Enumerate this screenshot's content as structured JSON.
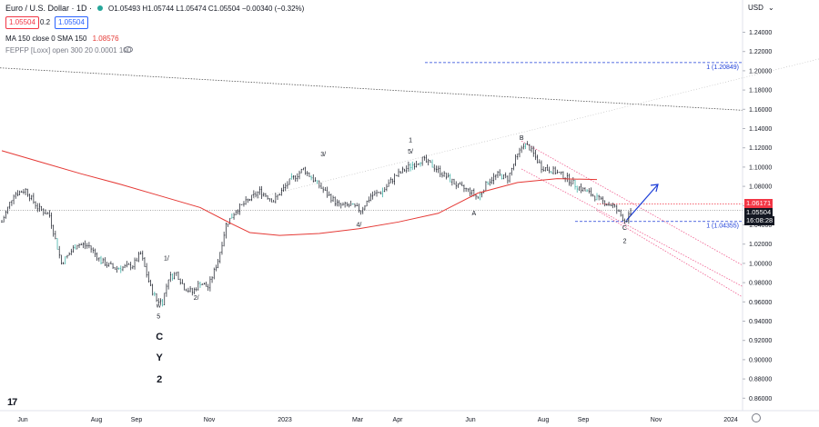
{
  "header": {
    "title": "Euro / U.S. Dollar · 1D ·",
    "ohlc": "O1.05493 H1.05744 L1.05474 C1.05504 −0.00340 (−0.32%)",
    "bid": "1.05504",
    "spread": "0.2",
    "ask": "1.05504"
  },
  "indicators": {
    "ma_label": "MA 150 close 0 SMA 150",
    "ma_value": "1.08576",
    "fepp_label": "FEPFP [Loxx] open 300 20 0.0001 100"
  },
  "currency": "USD",
  "colors": {
    "ma_line": "#e53935",
    "channel": "#f06292",
    "target_line": "#1e3fd8",
    "price_line": "#000000"
  },
  "chart_data": {
    "type": "ohlc",
    "x_ticks": [
      "Jun",
      "Aug",
      "Sep",
      "Nov",
      "2023",
      "Mar",
      "Apr",
      "Jun",
      "Aug",
      "Sep",
      "Nov",
      "2024"
    ],
    "y_ticks": [
      "1.24000",
      "1.22000",
      "1.20000",
      "1.18000",
      "1.16000",
      "1.14000",
      "1.12000",
      "1.10000",
      "1.08000",
      "1.06000",
      "1.04000",
      "1.02000",
      "1.00000",
      "0.98000",
      "0.96000",
      "0.94000",
      "0.92000",
      "0.90000",
      "0.88000",
      "0.86000"
    ],
    "ylim": [
      0.85,
      1.25
    ],
    "anchors": [
      {
        "i": 0,
        "p": 1.043
      },
      {
        "i": 6,
        "p": 1.072
      },
      {
        "i": 12,
        "p": 1.076
      },
      {
        "i": 18,
        "p": 1.058
      },
      {
        "i": 24,
        "p": 1.05
      },
      {
        "i": 30,
        "p": 1.0
      },
      {
        "i": 38,
        "p": 1.02
      },
      {
        "i": 44,
        "p": 1.018
      },
      {
        "i": 50,
        "p": 1.002
      },
      {
        "i": 57,
        "p": 0.995
      },
      {
        "i": 62,
        "p": 0.996
      },
      {
        "i": 66,
        "p": 0.998
      },
      {
        "i": 70,
        "p": 1.01
      },
      {
        "i": 75,
        "p": 0.975
      },
      {
        "i": 78,
        "p": 0.962
      },
      {
        "i": 81,
        "p": 0.96
      },
      {
        "i": 84,
        "p": 0.985
      },
      {
        "i": 88,
        "p": 0.99
      },
      {
        "i": 92,
        "p": 0.975
      },
      {
        "i": 96,
        "p": 0.97
      },
      {
        "i": 100,
        "p": 0.98
      },
      {
        "i": 104,
        "p": 0.975
      },
      {
        "i": 109,
        "p": 1.003
      },
      {
        "i": 113,
        "p": 1.04
      },
      {
        "i": 118,
        "p": 1.055
      },
      {
        "i": 124,
        "p": 1.065
      },
      {
        "i": 130,
        "p": 1.075
      },
      {
        "i": 137,
        "p": 1.065
      },
      {
        "i": 145,
        "p": 1.085
      },
      {
        "i": 152,
        "p": 1.098
      },
      {
        "i": 158,
        "p": 1.085
      },
      {
        "i": 164,
        "p": 1.072
      },
      {
        "i": 170,
        "p": 1.06
      },
      {
        "i": 176,
        "p": 1.06
      },
      {
        "i": 181,
        "p": 1.055
      },
      {
        "i": 186,
        "p": 1.07
      },
      {
        "i": 192,
        "p": 1.075
      },
      {
        "i": 198,
        "p": 1.09
      },
      {
        "i": 205,
        "p": 1.1
      },
      {
        "i": 212,
        "p": 1.108
      },
      {
        "i": 218,
        "p": 1.1
      },
      {
        "i": 224,
        "p": 1.09
      },
      {
        "i": 230,
        "p": 1.08
      },
      {
        "i": 236,
        "p": 1.075
      },
      {
        "i": 240,
        "p": 1.068
      },
      {
        "i": 245,
        "p": 1.085
      },
      {
        "i": 250,
        "p": 1.092
      },
      {
        "i": 255,
        "p": 1.088
      },
      {
        "i": 259,
        "p": 1.108
      },
      {
        "i": 263,
        "p": 1.124
      },
      {
        "i": 266,
        "p": 1.12
      },
      {
        "i": 272,
        "p": 1.1
      },
      {
        "i": 278,
        "p": 1.096
      },
      {
        "i": 284,
        "p": 1.09
      },
      {
        "i": 290,
        "p": 1.08
      },
      {
        "i": 296,
        "p": 1.073
      },
      {
        "i": 302,
        "p": 1.065
      },
      {
        "i": 308,
        "p": 1.06
      },
      {
        "i": 312,
        "p": 1.05
      },
      {
        "i": 314,
        "p": 1.044
      },
      {
        "i": 316,
        "p": 1.049
      },
      {
        "i": 318,
        "p": 1.055
      }
    ],
    "moving_average": {
      "name": "MA 150",
      "last": 1.08576,
      "points": [
        {
          "i": 0,
          "p": 1.117
        },
        {
          "i": 20,
          "p": 1.105
        },
        {
          "i": 40,
          "p": 1.093
        },
        {
          "i": 60,
          "p": 1.082
        },
        {
          "i": 80,
          "p": 1.07
        },
        {
          "i": 100,
          "p": 1.058
        },
        {
          "i": 115,
          "p": 1.042
        },
        {
          "i": 125,
          "p": 1.032
        },
        {
          "i": 140,
          "p": 1.029
        },
        {
          "i": 160,
          "p": 1.031
        },
        {
          "i": 180,
          "p": 1.036
        },
        {
          "i": 200,
          "p": 1.043
        },
        {
          "i": 220,
          "p": 1.052
        },
        {
          "i": 240,
          "p": 1.073
        },
        {
          "i": 260,
          "p": 1.084
        },
        {
          "i": 280,
          "p": 1.088
        },
        {
          "i": 300,
          "p": 1.087
        }
      ]
    },
    "price_levels": [
      {
        "label": "1 (1.20849)",
        "value": 1.20849,
        "style": "dashed-blue"
      },
      {
        "label": "1 (1.04355)",
        "value": 1.04355,
        "style": "dashed-blue"
      },
      {
        "value": 1.06171,
        "style": "dotted-red"
      },
      {
        "value": 1.05504,
        "style": "dotted-black"
      }
    ],
    "axis_badges": {
      "red": "1.06171",
      "price": "1.05504",
      "countdown": "16:08:28"
    },
    "wave_labels": [
      {
        "text": "w",
        "i": 79,
        "p": 0.954
      },
      {
        "text": "5",
        "i": 79,
        "p": 0.943
      },
      {
        "text": "1/",
        "i": 83,
        "p": 1.003
      },
      {
        "text": "2/",
        "i": 98,
        "p": 0.962
      },
      {
        "text": "3/",
        "i": 162,
        "p": 1.111
      },
      {
        "text": "4/",
        "i": 180,
        "p": 1.038
      },
      {
        "text": "1",
        "i": 206,
        "p": 1.126
      },
      {
        "text": "5/",
        "i": 206,
        "p": 1.114
      },
      {
        "text": "A",
        "i": 238,
        "p": 1.05
      },
      {
        "text": "B",
        "i": 262,
        "p": 1.128
      },
      {
        "text": "C",
        "i": 314,
        "p": 1.035
      },
      {
        "text": "2",
        "i": 314,
        "p": 1.021
      }
    ],
    "big_labels": [
      "C",
      "Y",
      "2"
    ]
  }
}
